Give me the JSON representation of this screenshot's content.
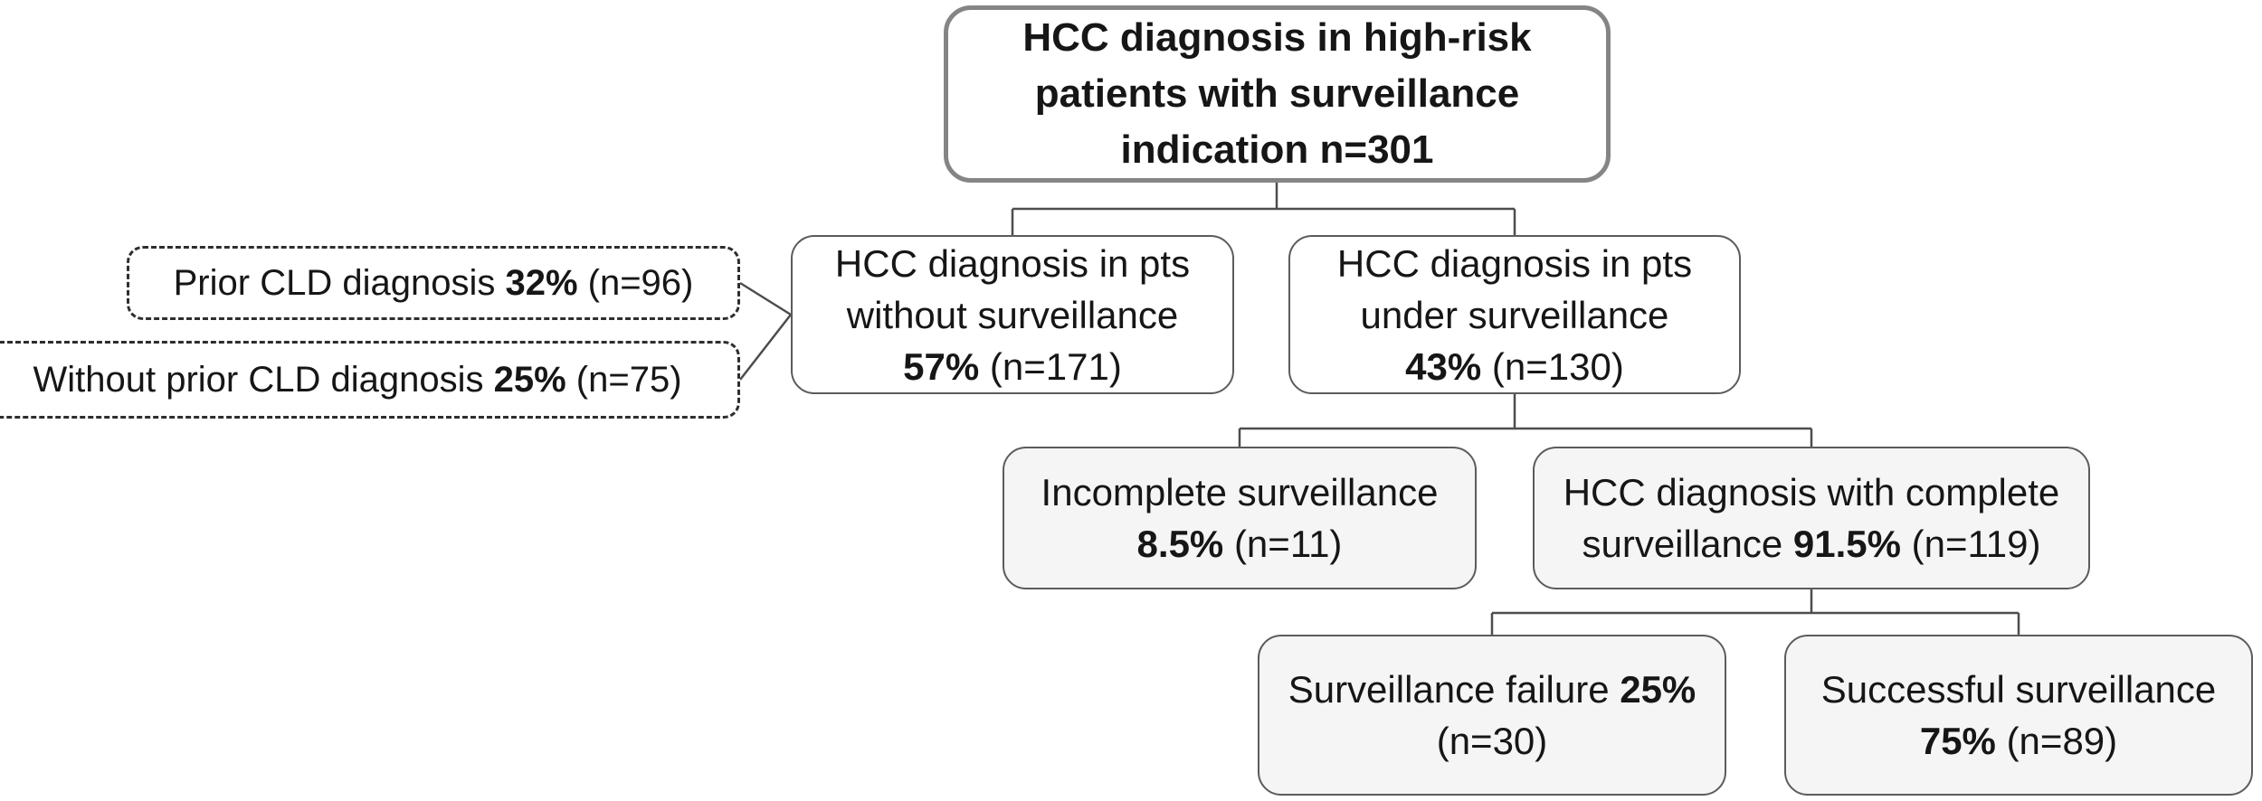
{
  "diagram": {
    "description": "Flowchart of HCC diagnosis in high-risk patients with surveillance indication",
    "colors": {
      "bg": "#ffffff",
      "text": "#161616",
      "border-strong": "#858585",
      "border": "#5c5c5c",
      "border-dash": "#2e2e2e",
      "line": "#4d4d4d",
      "fill-white": "#ffffff",
      "fill-light": "#f5f5f5"
    },
    "nodes": {
      "root": {
        "label": "HCC diagnosis in high-risk patients with surveillance indication n=301",
        "n": 301,
        "lines": [
          [
            {
              "t": "HCC diagnosis in high-risk",
              "b": true
            }
          ],
          [
            {
              "t": "patients with surveillance",
              "b": true
            }
          ],
          [
            {
              "t": "indication n=301",
              "b": true
            }
          ]
        ]
      },
      "prior_cld": {
        "label": "Prior CLD diagnosis 32% (n=96)",
        "percent": "32%",
        "n": 96,
        "lines": [
          [
            {
              "t": "Prior CLD diagnosis "
            },
            {
              "t": "32%",
              "b": true
            },
            {
              "t": " (n=96)"
            }
          ]
        ]
      },
      "no_prior_cld": {
        "label": "Without prior CLD diagnosis 25% (n=75)",
        "percent": "25%",
        "n": 75,
        "lines": [
          [
            {
              "t": "Without prior CLD diagnosis "
            },
            {
              "t": "25%",
              "b": true
            },
            {
              "t": " (n=75)"
            }
          ]
        ]
      },
      "no_surveillance": {
        "label": "HCC diagnosis in pts without surveillance 57% (n=171)",
        "percent": "57%",
        "n": 171,
        "lines": [
          [
            {
              "t": "HCC diagnosis in pts"
            }
          ],
          [
            {
              "t": "without surveillance"
            }
          ],
          [
            {
              "t": "57%",
              "b": true
            },
            {
              "t": " (n=171)"
            }
          ]
        ]
      },
      "under_surveillance": {
        "label": "HCC diagnosis in pts under surveillance 43% (n=130)",
        "percent": "43%",
        "n": 130,
        "lines": [
          [
            {
              "t": "HCC diagnosis in pts"
            }
          ],
          [
            {
              "t": "under surveillance"
            }
          ],
          [
            {
              "t": "43%",
              "b": true
            },
            {
              "t": " (n=130)"
            }
          ]
        ]
      },
      "incomplete_surveillance": {
        "label": "Incomplete surveillance 8.5% (n=11)",
        "percent": "8.5%",
        "n": 11,
        "lines": [
          [
            {
              "t": "Incomplete surveillance"
            }
          ],
          [
            {
              "t": "8.5%",
              "b": true
            },
            {
              "t": " (n=11)"
            }
          ]
        ]
      },
      "complete_surveillance": {
        "label": "HCC diagnosis with complete surveillance 91.5% (n=119)",
        "percent": "91.5%",
        "n": 119,
        "lines": [
          [
            {
              "t": "HCC diagnosis with complete"
            }
          ],
          [
            {
              "t": "surveillance "
            },
            {
              "t": "91.5%",
              "b": true
            },
            {
              "t": " (n=119)"
            }
          ]
        ]
      },
      "surveillance_failure": {
        "label": "Surveillance failure 25% (n=30)",
        "percent": "25%",
        "n": 30,
        "lines": [
          [
            {
              "t": "Surveillance failure "
            },
            {
              "t": "25%",
              "b": true
            }
          ],
          [
            {
              "t": "(n=30)"
            }
          ]
        ]
      },
      "successful_surveillance": {
        "label": "Successful surveillance 75% (n=89)",
        "percent": "75%",
        "n": 89,
        "lines": [
          [
            {
              "t": "Successful surveillance"
            }
          ],
          [
            {
              "t": "75%",
              "b": true
            },
            {
              "t": " (n=89)"
            }
          ]
        ]
      }
    }
  }
}
